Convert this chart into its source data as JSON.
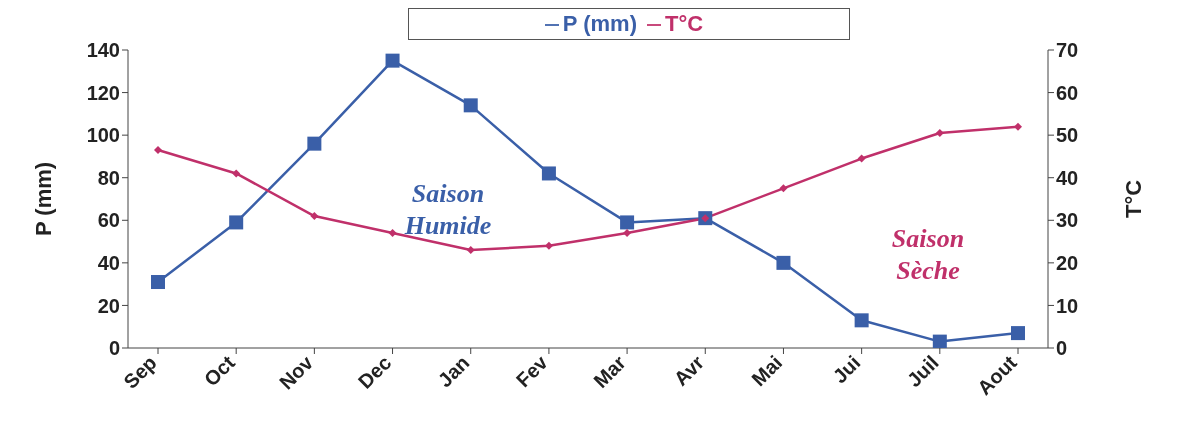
{
  "chart_data": {
    "type": "line",
    "categories": [
      "Sep",
      "Oct",
      "Nov",
      "Dec",
      "Jan",
      "Fev",
      "Mar",
      "Avr",
      "Mai",
      "Jui",
      "Juil",
      "Aout"
    ],
    "series": [
      {
        "name": "P (mm)",
        "color": "#3a5fa8",
        "marker": "square",
        "values": [
          31,
          59,
          96,
          135,
          114,
          82,
          59,
          61,
          40,
          13,
          3,
          7
        ]
      },
      {
        "name": "T°C",
        "color": "#c0306a",
        "marker": "diamond",
        "axis": "y2",
        "values": [
          46.5,
          41,
          31,
          27,
          23,
          24,
          27,
          30.5,
          37.5,
          44.5,
          50.5,
          52
        ]
      }
    ],
    "ylabel": "P (mm)",
    "y2label": "T°C",
    "ylim": [
      0,
      140
    ],
    "yticks": [
      0,
      20,
      40,
      60,
      80,
      100,
      120,
      140
    ],
    "y2lim": [
      0,
      70
    ],
    "y2ticks": [
      0,
      10,
      20,
      30,
      40,
      50,
      60,
      70
    ],
    "legend": "top",
    "line_style": "solid",
    "annotations": [
      "Saison Humide",
      "Saison Sèche"
    ]
  }
}
